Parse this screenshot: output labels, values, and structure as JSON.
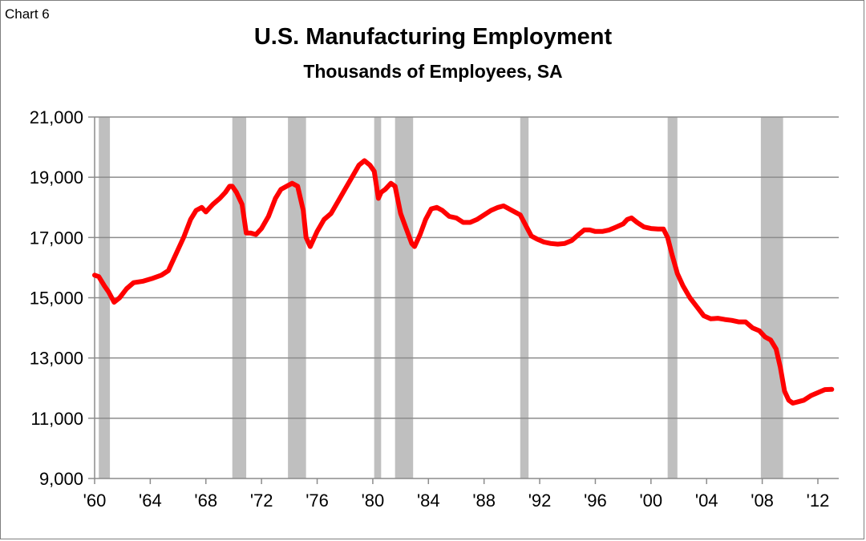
{
  "chart_label": "Chart 6",
  "chart_data": {
    "type": "line",
    "title": "U.S. Manufacturing Employment",
    "subtitle": "Thousands of Employees, SA",
    "xlabel": "",
    "ylabel": "",
    "xlim": [
      1960,
      2013.5
    ],
    "ylim": [
      9000,
      21000
    ],
    "grid": true,
    "legend": "none",
    "x_ticks": [
      {
        "value": 1960,
        "label": "'60"
      },
      {
        "value": 1964,
        "label": "'64"
      },
      {
        "value": 1968,
        "label": "'68"
      },
      {
        "value": 1972,
        "label": "'72"
      },
      {
        "value": 1976,
        "label": "'76"
      },
      {
        "value": 1980,
        "label": "'80"
      },
      {
        "value": 1984,
        "label": "'84"
      },
      {
        "value": 1988,
        "label": "'88"
      },
      {
        "value": 1992,
        "label": "'92"
      },
      {
        "value": 1996,
        "label": "'96"
      },
      {
        "value": 2000,
        "label": "'00"
      },
      {
        "value": 2004,
        "label": "'04"
      },
      {
        "value": 2008,
        "label": "'08"
      },
      {
        "value": 2012,
        "label": "'12"
      }
    ],
    "y_ticks": [
      {
        "value": 9000,
        "label": "9,000"
      },
      {
        "value": 11000,
        "label": "11,000"
      },
      {
        "value": 13000,
        "label": "13,000"
      },
      {
        "value": 15000,
        "label": "15,000"
      },
      {
        "value": 17000,
        "label": "17,000"
      },
      {
        "value": 19000,
        "label": "19,000"
      },
      {
        "value": 21000,
        "label": "21,000"
      }
    ],
    "recessions": [
      [
        1960.3,
        1961.1
      ],
      [
        1969.9,
        1970.9
      ],
      [
        1973.9,
        1975.2
      ],
      [
        1980.1,
        1980.6
      ],
      [
        1981.6,
        1982.9
      ],
      [
        1990.6,
        1991.2
      ],
      [
        2001.2,
        2001.9
      ],
      [
        2007.9,
        2009.5
      ]
    ],
    "series": [
      {
        "color": "#ff0000",
        "x": [
          1960.0,
          1960.3,
          1960.7,
          1961.0,
          1961.4,
          1961.8,
          1962.3,
          1962.8,
          1963.5,
          1964.2,
          1964.8,
          1965.3,
          1965.9,
          1966.4,
          1966.9,
          1967.3,
          1967.7,
          1968.0,
          1968.5,
          1969.0,
          1969.4,
          1969.7,
          1969.9,
          1970.2,
          1970.6,
          1970.9,
          1971.2,
          1971.6,
          1972.0,
          1972.5,
          1973.0,
          1973.4,
          1973.8,
          1974.2,
          1974.6,
          1975.0,
          1975.2,
          1975.5,
          1976.0,
          1976.5,
          1977.0,
          1977.5,
          1978.0,
          1978.5,
          1979.0,
          1979.4,
          1979.8,
          1980.1,
          1980.4,
          1980.6,
          1980.9,
          1981.3,
          1981.6,
          1982.0,
          1982.4,
          1982.8,
          1983.0,
          1983.4,
          1983.8,
          1984.2,
          1984.6,
          1985.0,
          1985.5,
          1986.0,
          1986.5,
          1987.0,
          1987.5,
          1988.0,
          1988.5,
          1989.0,
          1989.4,
          1989.8,
          1990.2,
          1990.6,
          1991.0,
          1991.4,
          1991.8,
          1992.3,
          1992.8,
          1993.3,
          1993.8,
          1994.3,
          1994.8,
          1995.2,
          1995.6,
          1996.0,
          1996.5,
          1997.0,
          1997.5,
          1998.0,
          1998.3,
          1998.6,
          1999.0,
          1999.5,
          2000.0,
          2000.5,
          2000.9,
          2001.2,
          2001.5,
          2001.9,
          2002.3,
          2002.8,
          2003.3,
          2003.8,
          2004.3,
          2004.8,
          2005.3,
          2005.8,
          2006.3,
          2006.8,
          2007.3,
          2007.8,
          2008.2,
          2008.6,
          2009.0,
          2009.3,
          2009.6,
          2009.9,
          2010.2,
          2010.6,
          2011.0,
          2011.5,
          2012.0,
          2012.5,
          2013.0
        ],
        "values": [
          15750,
          15700,
          15400,
          15200,
          14850,
          15000,
          15300,
          15500,
          15550,
          15650,
          15750,
          15900,
          16500,
          17000,
          17600,
          17900,
          18000,
          17850,
          18100,
          18300,
          18500,
          18700,
          18700,
          18500,
          18100,
          17150,
          17150,
          17100,
          17300,
          17700,
          18300,
          18600,
          18700,
          18800,
          18700,
          17900,
          17000,
          16700,
          17200,
          17600,
          17800,
          18200,
          18600,
          19000,
          19400,
          19550,
          19400,
          19200,
          18300,
          18500,
          18600,
          18800,
          18700,
          17800,
          17300,
          16800,
          16700,
          17100,
          17600,
          17950,
          18000,
          17900,
          17700,
          17650,
          17500,
          17500,
          17600,
          17750,
          17900,
          18000,
          18050,
          17950,
          17850,
          17750,
          17400,
          17050,
          16950,
          16850,
          16800,
          16780,
          16800,
          16900,
          17100,
          17250,
          17250,
          17200,
          17200,
          17250,
          17350,
          17450,
          17600,
          17650,
          17500,
          17350,
          17300,
          17280,
          17280,
          17000,
          16450,
          15800,
          15400,
          15000,
          14700,
          14400,
          14300,
          14320,
          14280,
          14250,
          14200,
          14200,
          14000,
          13900,
          13700,
          13600,
          13300,
          12700,
          11900,
          11600,
          11500,
          11550,
          11600,
          11750,
          11850,
          11950,
          11960
        ]
      }
    ]
  }
}
